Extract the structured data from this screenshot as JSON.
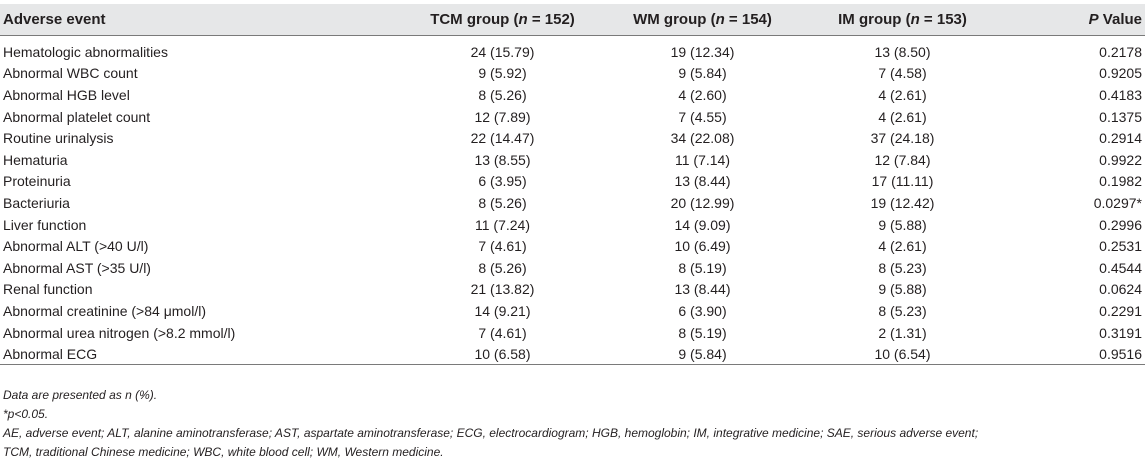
{
  "header": {
    "col0": "Adverse event",
    "col1_prefix": "TCM group (",
    "col1_n": "n",
    "col1_suffix": " = 152)",
    "col2_prefix": "WM group (",
    "col2_n": "n",
    "col2_suffix": " = 154)",
    "col3_prefix": "IM group (",
    "col3_n": "n",
    "col3_suffix": " = 153)",
    "col4_p": "P",
    "col4_suffix": " Value"
  },
  "rows": [
    {
      "event": "Hematologic abnormalities",
      "tcm": "24 (15.79)",
      "wm": "19 (12.34)",
      "im": "13 (8.50)",
      "p": "0.2178"
    },
    {
      "event": "Abnormal WBC count",
      "tcm": "9 (5.92)",
      "wm": "9 (5.84)",
      "im": "7 (4.58)",
      "p": "0.9205"
    },
    {
      "event": "Abnormal HGB level",
      "tcm": "8 (5.26)",
      "wm": "4 (2.60)",
      "im": "4 (2.61)",
      "p": "0.4183"
    },
    {
      "event": "Abnormal platelet count",
      "tcm": "12 (7.89)",
      "wm": "7 (4.55)",
      "im": "4 (2.61)",
      "p": "0.1375"
    },
    {
      "event": "Routine urinalysis",
      "tcm": "22 (14.47)",
      "wm": "34 (22.08)",
      "im": "37 (24.18)",
      "p": "0.2914"
    },
    {
      "event": "Hematuria",
      "tcm": "13 (8.55)",
      "wm": "11 (7.14)",
      "im": "12 (7.84)",
      "p": "0.9922"
    },
    {
      "event": "Proteinuria",
      "tcm": "6 (3.95)",
      "wm": "13 (8.44)",
      "im": "17 (11.11)",
      "p": "0.1982"
    },
    {
      "event": "Bacteriuria",
      "tcm": "8 (5.26)",
      "wm": "20 (12.99)",
      "im": "19 (12.42)",
      "p": "0.0297*"
    },
    {
      "event": "Liver function",
      "tcm": "11 (7.24)",
      "wm": "14 (9.09)",
      "im": "9 (5.88)",
      "p": "0.2996"
    },
    {
      "event": "Abnormal ALT (>40 U/l)",
      "tcm": "7 (4.61)",
      "wm": "10 (6.49)",
      "im": "4 (2.61)",
      "p": "0.2531"
    },
    {
      "event": "Abnormal AST (>35 U/l)",
      "tcm": "8 (5.26)",
      "wm": "8 (5.19)",
      "im": "8 (5.23)",
      "p": "0.4544"
    },
    {
      "event": "Renal function",
      "tcm": "21 (13.82)",
      "wm": "13 (8.44)",
      "im": "9 (5.88)",
      "p": "0.0624"
    },
    {
      "event": "Abnormal creatinine (>84 μmol/l)",
      "tcm": "14 (9.21)",
      "wm": "6 (3.90)",
      "im": "8 (5.23)",
      "p": "0.2291"
    },
    {
      "event": "Abnormal urea nitrogen (>8.2 mmol/l)",
      "tcm": "7 (4.61)",
      "wm": "8 (5.19)",
      "im": "2 (1.31)",
      "p": "0.3191"
    },
    {
      "event": "Abnormal ECG",
      "tcm": "10 (6.58)",
      "wm": "9 (5.84)",
      "im": "10 (6.54)",
      "p": "0.9516"
    }
  ],
  "notes": {
    "line1": "Data are presented as n (%).",
    "line2": "*p<0.05.",
    "line3": "AE, adverse event; ALT, alanine aminotransferase; AST, aspartate aminotransferase; ECG, electrocardiogram; HGB, hemoglobin; IM, integrative medicine; SAE, serious adverse event;",
    "line4": "TCM, traditional Chinese medicine; WBC, white blood cell; WM, Western medicine."
  },
  "colors": {
    "header_bg": "#e6e7e8",
    "rule": "#7a7a7a",
    "text": "#231f20"
  }
}
